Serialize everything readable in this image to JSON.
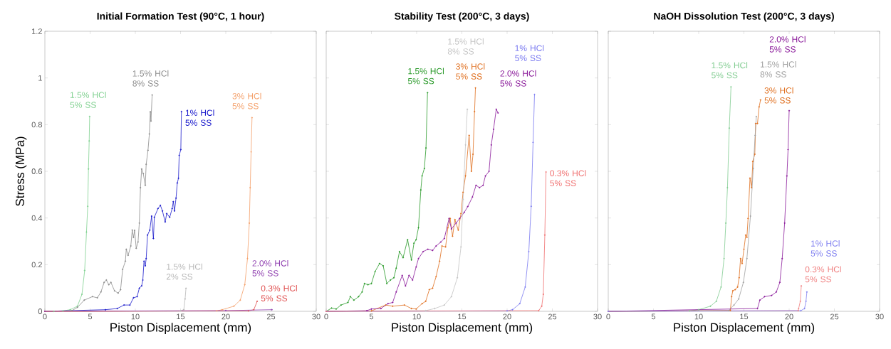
{
  "chart_data": [
    {
      "type": "line",
      "title": "Initial Formation Test (90°C, 1 hour)",
      "xlabel": "Piston Displacement (mm)",
      "ylabel": "Stress (MPa)",
      "xlim": [
        0,
        30
      ],
      "ylim": [
        0,
        1.2
      ],
      "xticks": [
        0,
        5,
        10,
        15,
        20,
        25,
        30
      ],
      "yticks": [
        0,
        0.2,
        0.4,
        0.6,
        0.8,
        1,
        1.2
      ],
      "marker": "circle",
      "series": [
        {
          "name": "1.5% HCl 5% SS",
          "color": "#7fd08f",
          "x": [
            0,
            1,
            2,
            2.8,
            3.6,
            4.1,
            4.4,
            4.6,
            4.74,
            4.82,
            4.9,
            4.95
          ],
          "values": [
            0,
            0,
            0.002,
            0.007,
            0.022,
            0.073,
            0.175,
            0.34,
            0.45,
            0.61,
            0.73,
            0.835
          ]
        },
        {
          "name": "1.5% HCl 8% SS",
          "color": "#8c8c8c",
          "x": [
            0,
            3,
            3.6,
            4.35,
            5.26,
            5.8,
            6.2,
            6.55,
            6.8,
            7.07,
            7.3,
            7.7,
            8.1,
            8.37,
            8.6,
            8.9,
            9.0,
            9.2,
            9.5,
            9.66,
            9.8,
            9.92,
            10.1,
            10.3,
            10.44,
            10.57,
            10.7,
            10.88,
            11.1,
            11.2,
            11.4,
            11.55,
            11.66,
            11.73,
            11.86
          ],
          "values": [
            0,
            0.003,
            0.017,
            0.048,
            0.063,
            0.058,
            0.083,
            0.124,
            0.134,
            0.114,
            0.124,
            0.088,
            0.078,
            0.093,
            0.18,
            0.215,
            0.266,
            0.24,
            0.28,
            0.348,
            0.317,
            0.347,
            0.27,
            0.297,
            0.378,
            0.53,
            0.61,
            0.59,
            0.54,
            0.63,
            0.69,
            0.76,
            0.855,
            0.815,
            0.927
          ]
        },
        {
          "name": "1% HCl 5% SS",
          "color": "#1a1acc",
          "x": [
            0,
            6.7,
            8.0,
            8.75,
            9.4,
            9.8,
            10.2,
            10.44,
            10.7,
            10.83,
            10.96,
            11.1,
            11.2,
            11.35,
            11.6,
            11.8,
            12.0,
            12.1,
            12.5,
            12.77,
            13.0,
            13.3,
            13.47,
            13.8,
            14.07,
            14.2,
            14.33,
            14.5,
            14.64,
            14.77,
            14.85,
            15.03,
            15.1
          ],
          "values": [
            0,
            0.007,
            0.012,
            0.027,
            0.027,
            0.058,
            0.063,
            0.099,
            0.109,
            0.134,
            0.215,
            0.195,
            0.226,
            0.327,
            0.348,
            0.408,
            0.312,
            0.403,
            0.44,
            0.454,
            0.43,
            0.383,
            0.419,
            0.403,
            0.44,
            0.47,
            0.43,
            0.485,
            0.55,
            0.57,
            0.668,
            0.693,
            0.856
          ]
        },
        {
          "name": "1.5% HCl 2% SS",
          "color": "#b8b8b8",
          "x": [
            0,
            15,
            15.36,
            15.5,
            15.6
          ],
          "values": [
            0,
            0.002,
            0.007,
            0.053,
            0.099
          ]
        },
        {
          "name": "3% HCl 5% SS",
          "color": "#f4a06a",
          "x": [
            0,
            19,
            19.6,
            20.9,
            21.6,
            22.1,
            22.4,
            22.6,
            22.7,
            22.8,
            22.9
          ],
          "values": [
            0,
            0.002,
            0.007,
            0.022,
            0.048,
            0.114,
            0.226,
            0.378,
            0.53,
            0.683,
            0.83
          ]
        },
        {
          "name": "0.3% HCl 5% SS",
          "color": "#e05050",
          "x": [
            0,
            22.5,
            23.1,
            23.47
          ],
          "values": [
            0,
            0.002,
            0.007,
            0.043
          ]
        },
        {
          "name": "2.0% HCl 5% SS",
          "color": "#9040b0",
          "x": [
            0,
            20,
            25.1
          ],
          "values": [
            0,
            0.003,
            0.007
          ]
        }
      ]
    },
    {
      "type": "line",
      "title": "Stability Test (200°C, 3 days)",
      "xlabel": "Piston Displacement (mm)",
      "xlim": [
        0,
        30
      ],
      "ylim": [
        0,
        1.2
      ],
      "xticks": [
        0,
        5,
        10,
        15,
        20,
        25,
        30
      ],
      "yticks": [
        0,
        0.2,
        0.4,
        0.6,
        0.8,
        1,
        1.2
      ],
      "tick_labels": "x",
      "marker": "circle",
      "series": [
        {
          "name": "1.5% HCl 5% SS",
          "color": "#2a9a2a",
          "x": [
            0,
            0.6,
            1.1,
            1.64,
            2.4,
            2.67,
            3.06,
            3.58,
            3.97,
            4.23,
            4.62,
            5.0,
            5.4,
            5.9,
            6.3,
            6.7,
            7.1,
            7.48,
            7.74,
            8.1,
            8.5,
            9.0,
            9.42,
            9.7,
            9.94,
            10.2,
            10.46,
            10.6,
            10.85,
            11.03,
            11.2
          ],
          "values": [
            0,
            0.014,
            0.01,
            0.027,
            0.038,
            0.063,
            0.048,
            0.063,
            0.083,
            0.119,
            0.114,
            0.119,
            0.17,
            0.205,
            0.195,
            0.119,
            0.134,
            0.144,
            0.185,
            0.256,
            0.23,
            0.307,
            0.22,
            0.292,
            0.307,
            0.358,
            0.52,
            0.58,
            0.612,
            0.7,
            0.937
          ]
        },
        {
          "name": "3% HCl 5% SS",
          "color": "#e07020",
          "x": [
            0,
            5.0,
            6.57,
            7.35,
            8.65,
            9.42,
            9.94,
            10.6,
            11.0,
            11.4,
            11.76,
            12.15,
            12.54,
            12.8,
            13.2,
            13.45,
            13.7,
            13.97,
            14.23,
            14.6,
            14.9,
            15.13,
            15.4,
            15.8,
            16.05,
            16.23,
            16.4,
            16.5
          ],
          "values": [
            0,
            0.002,
            0.027,
            0.022,
            0.027,
            0.012,
            0.01,
            0.033,
            0.043,
            0.093,
            0.099,
            0.149,
            0.215,
            0.28,
            0.276,
            0.358,
            0.398,
            0.322,
            0.393,
            0.348,
            0.419,
            0.51,
            0.58,
            0.754,
            0.6,
            0.673,
            0.856,
            0.957
          ]
        },
        {
          "name": "2.0% HCl 5% SS",
          "color": "#8a1a9a",
          "x": [
            0,
            4.5,
            5.0,
            6.05,
            6.83,
            7.35,
            7.74,
            8.4,
            8.77,
            9.16,
            9.55,
            9.94,
            10.2,
            10.72,
            11.24,
            11.76,
            12.15,
            12.67,
            13.06,
            13.58,
            13.84,
            14.36,
            14.75,
            15.26,
            15.65,
            16.17,
            16.56,
            16.95,
            17.34,
            17.6,
            18.0,
            18.25,
            18.5,
            18.8,
            19.0
          ],
          "values": [
            0,
            0.003,
            0.01,
            0.012,
            0.033,
            0.038,
            0.083,
            0.154,
            0.109,
            0.154,
            0.134,
            0.19,
            0.226,
            0.256,
            0.266,
            0.261,
            0.28,
            0.297,
            0.312,
            0.398,
            0.353,
            0.378,
            0.398,
            0.424,
            0.449,
            0.49,
            0.54,
            0.53,
            0.54,
            0.58,
            0.6,
            0.713,
            0.78,
            0.866,
            0.85
          ]
        },
        {
          "name": "1.5% HCl 8% SS",
          "color": "#c4c4c4",
          "x": [
            0,
            11,
            12.0,
            13.06,
            13.84,
            14.5,
            14.9,
            15.13,
            15.4,
            15.6
          ],
          "values": [
            0,
            0.003,
            0.012,
            0.027,
            0.063,
            0.144,
            0.276,
            0.48,
            0.713,
            0.866
          ]
        },
        {
          "name": "1% HCl 5% SS",
          "color": "#7878f0",
          "x": [
            0,
            20,
            20.6,
            21.4,
            22.0,
            22.4,
            22.66,
            22.87,
            23.03
          ],
          "values": [
            0,
            0.002,
            0.007,
            0.033,
            0.104,
            0.256,
            0.45,
            0.724,
            0.929
          ]
        },
        {
          "name": "0.3% HCl 5% SS",
          "color": "#f07070",
          "x": [
            0,
            23.5,
            23.83,
            24.0,
            24.17,
            24.3
          ],
          "values": [
            0,
            0.003,
            0.022,
            0.073,
            0.327,
            0.597
          ]
        }
      ]
    },
    {
      "type": "line",
      "title": "NaOH Dissolution Test (200°C, 3 days)",
      "xlabel": "Piston Displacement (mm)",
      "xlim": [
        0,
        30
      ],
      "ylim": [
        0,
        1.2
      ],
      "xticks": [
        0,
        5,
        10,
        15,
        20,
        25,
        30
      ],
      "yticks": [
        0,
        0.2,
        0.4,
        0.6,
        0.8,
        1,
        1.2
      ],
      "tick_labels": "x",
      "marker": "circle",
      "series": [
        {
          "name": "1.5% HCl 5% SS",
          "color": "#80cc90",
          "x": [
            0,
            9,
            10.0,
            11.3,
            11.95,
            12.47,
            12.8,
            13.0,
            13.18,
            13.38,
            13.57
          ],
          "values": [
            0,
            0.002,
            0.007,
            0.022,
            0.043,
            0.104,
            0.226,
            0.378,
            0.53,
            0.785,
            0.962
          ]
        },
        {
          "name": "3% HCl 5% SS",
          "color": "#e07020",
          "x": [
            0,
            13.5,
            13.64,
            13.77,
            14.03,
            14.3,
            14.47,
            14.63,
            14.8,
            15.0,
            15.2,
            15.33,
            15.46,
            15.67,
            15.85,
            15.98,
            16.2,
            16.3,
            16.5,
            16.68,
            16.84
          ],
          "values": [
            0,
            0.004,
            0.063,
            0.088,
            0.093,
            0.104,
            0.144,
            0.226,
            0.205,
            0.266,
            0.327,
            0.317,
            0.398,
            0.571,
            0.53,
            0.642,
            0.673,
            0.805,
            0.805,
            0.876,
            0.906
          ]
        },
        {
          "name": "1.5% HCl 8% SS",
          "color": "#a0a0a0",
          "x": [
            0,
            13.3,
            13.9,
            14.42,
            14.94,
            15.33,
            15.72,
            16.03,
            16.24,
            16.37
          ],
          "values": [
            0,
            0.003,
            0.027,
            0.053,
            0.124,
            0.226,
            0.408,
            0.612,
            0.754,
            0.835
          ]
        },
        {
          "name": "2.0% HCl 5% SS",
          "color": "#8a1a9a",
          "x": [
            0,
            16.5,
            16.76,
            17.28,
            18.06,
            18.58,
            18.97,
            19.23,
            19.5,
            19.75,
            19.88,
            20.0
          ],
          "values": [
            0,
            0.012,
            0.048,
            0.063,
            0.068,
            0.083,
            0.124,
            0.226,
            0.378,
            0.58,
            0.693,
            0.86
          ]
        },
        {
          "name": "0.3% HCl 5% SS",
          "color": "#f08080",
          "x": [
            0,
            21,
            21.05,
            21.23,
            21.34
          ],
          "values": [
            0,
            0.003,
            0.012,
            0.043,
            0.109
          ]
        },
        {
          "name": "1% HCl 5% SS",
          "color": "#8080f0",
          "x": [
            0,
            21.3,
            21.7,
            21.86,
            21.96
          ],
          "values": [
            0,
            0.003,
            0.012,
            0.043,
            0.083
          ]
        }
      ]
    }
  ]
}
